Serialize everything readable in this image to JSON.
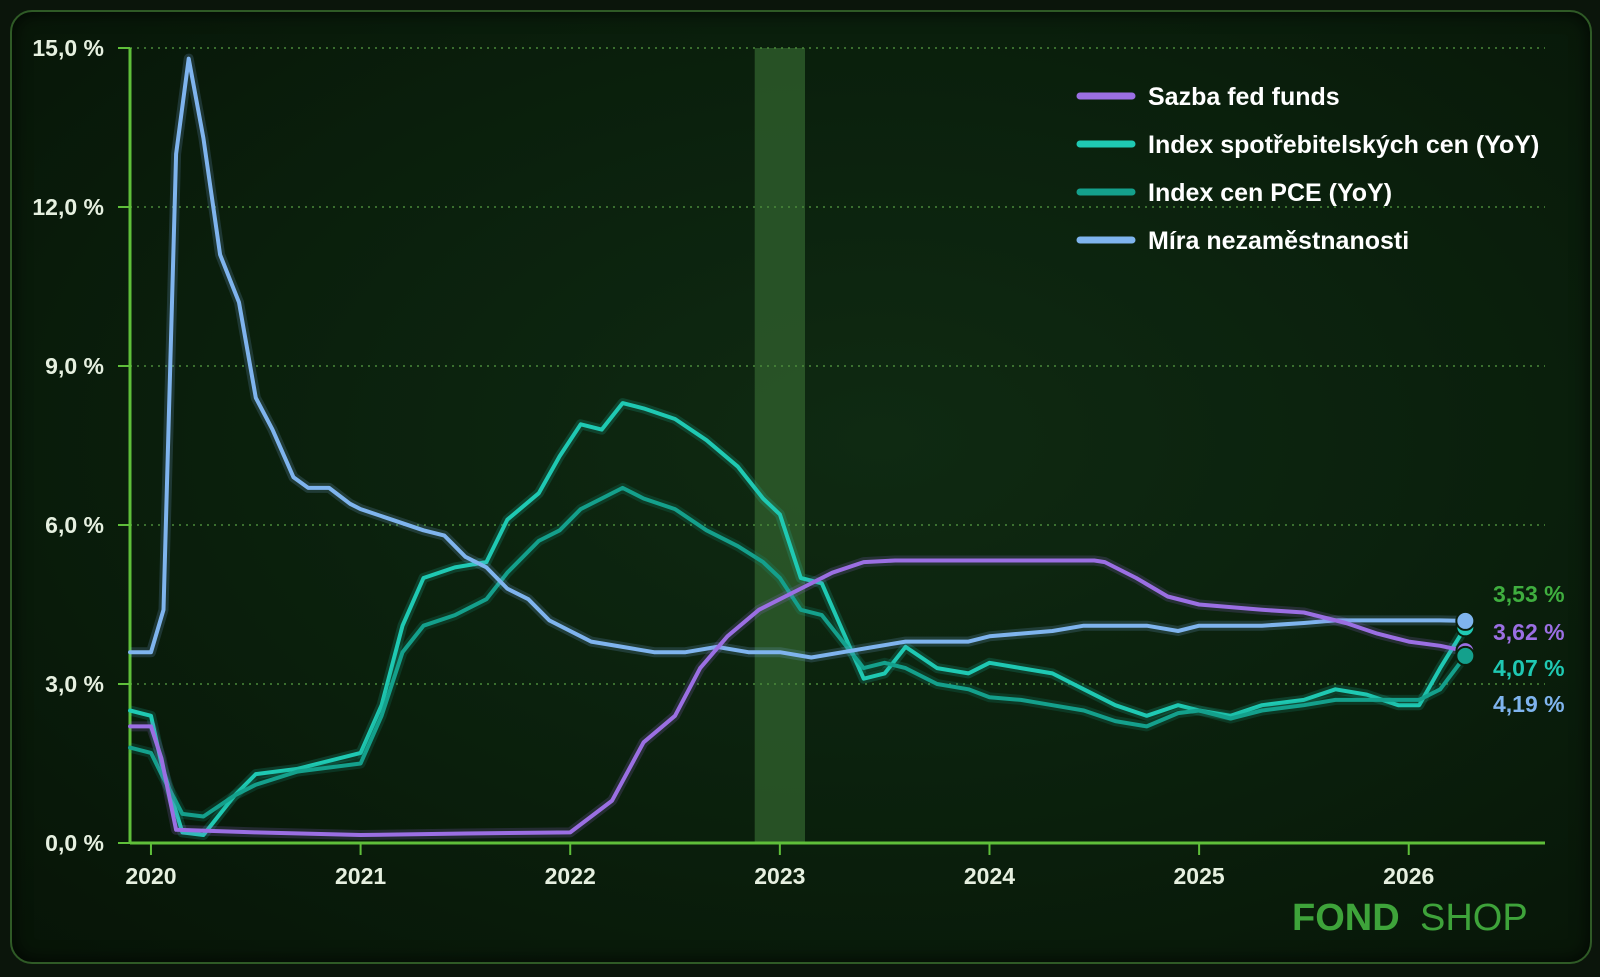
{
  "chart_data": {
    "type": "line",
    "x_ticks": [
      "2020",
      "2021",
      "2022",
      "2023",
      "2024",
      "2025",
      "2026"
    ],
    "y_ticks": [
      "0,0 %",
      "3,0 %",
      "6,0 %",
      "9,0 %",
      "12,0 %",
      "15,0 %"
    ],
    "ylim": [
      0,
      15
    ],
    "xlim": [
      2019.9,
      2026.65
    ],
    "grid": "horizontal dotted",
    "legend_position": "top-right",
    "highlight_band": [
      2022.88,
      2023.12
    ],
    "series": [
      {
        "name": "Sazba fed funds",
        "color": "#9b6fe3",
        "end_label": "3,62 %",
        "points": [
          [
            2019.9,
            2.2
          ],
          [
            2020.0,
            2.2
          ],
          [
            2020.05,
            1.6
          ],
          [
            2020.12,
            0.25
          ],
          [
            2020.5,
            0.2
          ],
          [
            2021.0,
            0.15
          ],
          [
            2021.5,
            0.18
          ],
          [
            2022.0,
            0.2
          ],
          [
            2022.1,
            0.5
          ],
          [
            2022.2,
            0.8
          ],
          [
            2022.35,
            1.9
          ],
          [
            2022.5,
            2.4
          ],
          [
            2022.62,
            3.3
          ],
          [
            2022.75,
            3.9
          ],
          [
            2022.9,
            4.4
          ],
          [
            2023.0,
            4.6
          ],
          [
            2023.1,
            4.8
          ],
          [
            2023.25,
            5.1
          ],
          [
            2023.4,
            5.3
          ],
          [
            2023.55,
            5.33
          ],
          [
            2023.7,
            5.33
          ],
          [
            2024.0,
            5.33
          ],
          [
            2024.5,
            5.33
          ],
          [
            2024.55,
            5.3
          ],
          [
            2024.7,
            5.0
          ],
          [
            2024.85,
            4.65
          ],
          [
            2025.0,
            4.5
          ],
          [
            2025.3,
            4.4
          ],
          [
            2025.5,
            4.35
          ],
          [
            2025.7,
            4.15
          ],
          [
            2025.85,
            3.95
          ],
          [
            2026.0,
            3.8
          ],
          [
            2026.15,
            3.72
          ],
          [
            2026.27,
            3.62
          ]
        ]
      },
      {
        "name": "Index spotřebitelských cen (YoY)",
        "color": "#1fc9b3",
        "end_label": "4,07 %",
        "points": [
          [
            2019.9,
            2.5
          ],
          [
            2020.0,
            2.4
          ],
          [
            2020.05,
            1.5
          ],
          [
            2020.15,
            0.2
          ],
          [
            2020.25,
            0.15
          ],
          [
            2020.4,
            0.9
          ],
          [
            2020.5,
            1.3
          ],
          [
            2020.7,
            1.4
          ],
          [
            2021.0,
            1.7
          ],
          [
            2021.1,
            2.6
          ],
          [
            2021.2,
            4.1
          ],
          [
            2021.3,
            5.0
          ],
          [
            2021.45,
            5.2
          ],
          [
            2021.6,
            5.3
          ],
          [
            2021.7,
            6.1
          ],
          [
            2021.85,
            6.6
          ],
          [
            2021.95,
            7.3
          ],
          [
            2022.05,
            7.9
          ],
          [
            2022.15,
            7.8
          ],
          [
            2022.25,
            8.3
          ],
          [
            2022.35,
            8.2
          ],
          [
            2022.5,
            8.0
          ],
          [
            2022.65,
            7.6
          ],
          [
            2022.8,
            7.1
          ],
          [
            2022.92,
            6.5
          ],
          [
            2023.0,
            6.2
          ],
          [
            2023.1,
            5.0
          ],
          [
            2023.2,
            4.9
          ],
          [
            2023.3,
            4.0
          ],
          [
            2023.4,
            3.1
          ],
          [
            2023.5,
            3.2
          ],
          [
            2023.6,
            3.7
          ],
          [
            2023.75,
            3.3
          ],
          [
            2023.9,
            3.2
          ],
          [
            2024.0,
            3.4
          ],
          [
            2024.15,
            3.3
          ],
          [
            2024.3,
            3.2
          ],
          [
            2024.45,
            2.9
          ],
          [
            2024.6,
            2.6
          ],
          [
            2024.75,
            2.4
          ],
          [
            2024.9,
            2.6
          ],
          [
            2025.0,
            2.5
          ],
          [
            2025.15,
            2.4
          ],
          [
            2025.3,
            2.6
          ],
          [
            2025.5,
            2.7
          ],
          [
            2025.65,
            2.9
          ],
          [
            2025.8,
            2.8
          ],
          [
            2025.95,
            2.6
          ],
          [
            2026.05,
            2.6
          ],
          [
            2026.15,
            3.3
          ],
          [
            2026.27,
            4.07
          ]
        ]
      },
      {
        "name": "Index cen PCE (YoY)",
        "color": "#14a08c",
        "end_label": "3,53 %",
        "end_label_color": "#3fae3f",
        "points": [
          [
            2019.9,
            1.8
          ],
          [
            2020.0,
            1.7
          ],
          [
            2020.05,
            1.3
          ],
          [
            2020.15,
            0.55
          ],
          [
            2020.25,
            0.5
          ],
          [
            2020.4,
            0.9
          ],
          [
            2020.5,
            1.1
          ],
          [
            2020.7,
            1.35
          ],
          [
            2021.0,
            1.5
          ],
          [
            2021.1,
            2.4
          ],
          [
            2021.2,
            3.6
          ],
          [
            2021.3,
            4.1
          ],
          [
            2021.45,
            4.3
          ],
          [
            2021.6,
            4.6
          ],
          [
            2021.7,
            5.1
          ],
          [
            2021.85,
            5.7
          ],
          [
            2021.95,
            5.9
          ],
          [
            2022.05,
            6.3
          ],
          [
            2022.15,
            6.5
          ],
          [
            2022.25,
            6.7
          ],
          [
            2022.35,
            6.5
          ],
          [
            2022.5,
            6.3
          ],
          [
            2022.65,
            5.9
          ],
          [
            2022.8,
            5.6
          ],
          [
            2022.92,
            5.3
          ],
          [
            2023.0,
            5.0
          ],
          [
            2023.1,
            4.4
          ],
          [
            2023.2,
            4.3
          ],
          [
            2023.3,
            3.8
          ],
          [
            2023.4,
            3.3
          ],
          [
            2023.5,
            3.4
          ],
          [
            2023.6,
            3.3
          ],
          [
            2023.75,
            3.0
          ],
          [
            2023.9,
            2.9
          ],
          [
            2024.0,
            2.75
          ],
          [
            2024.15,
            2.7
          ],
          [
            2024.3,
            2.6
          ],
          [
            2024.45,
            2.5
          ],
          [
            2024.6,
            2.3
          ],
          [
            2024.75,
            2.2
          ],
          [
            2024.9,
            2.45
          ],
          [
            2025.0,
            2.5
          ],
          [
            2025.15,
            2.35
          ],
          [
            2025.3,
            2.5
          ],
          [
            2025.5,
            2.6
          ],
          [
            2025.65,
            2.7
          ],
          [
            2025.8,
            2.7
          ],
          [
            2025.95,
            2.7
          ],
          [
            2026.05,
            2.7
          ],
          [
            2026.15,
            2.9
          ],
          [
            2026.27,
            3.53
          ]
        ]
      },
      {
        "name": "Míra nezaměstnanosti",
        "color": "#7fb4ee",
        "end_label": "4,19 %",
        "points": [
          [
            2019.9,
            3.6
          ],
          [
            2020.0,
            3.6
          ],
          [
            2020.06,
            4.4
          ],
          [
            2020.12,
            13.0
          ],
          [
            2020.18,
            14.8
          ],
          [
            2020.25,
            13.3
          ],
          [
            2020.33,
            11.1
          ],
          [
            2020.42,
            10.2
          ],
          [
            2020.5,
            8.4
          ],
          [
            2020.58,
            7.8
          ],
          [
            2020.68,
            6.9
          ],
          [
            2020.75,
            6.7
          ],
          [
            2020.85,
            6.7
          ],
          [
            2020.95,
            6.4
          ],
          [
            2021.0,
            6.3
          ],
          [
            2021.15,
            6.1
          ],
          [
            2021.3,
            5.9
          ],
          [
            2021.4,
            5.8
          ],
          [
            2021.5,
            5.4
          ],
          [
            2021.6,
            5.2
          ],
          [
            2021.7,
            4.8
          ],
          [
            2021.8,
            4.6
          ],
          [
            2021.9,
            4.2
          ],
          [
            2022.0,
            4.0
          ],
          [
            2022.1,
            3.8
          ],
          [
            2022.25,
            3.7
          ],
          [
            2022.4,
            3.6
          ],
          [
            2022.55,
            3.6
          ],
          [
            2022.7,
            3.7
          ],
          [
            2022.85,
            3.6
          ],
          [
            2023.0,
            3.6
          ],
          [
            2023.15,
            3.5
          ],
          [
            2023.3,
            3.6
          ],
          [
            2023.45,
            3.7
          ],
          [
            2023.6,
            3.8
          ],
          [
            2023.75,
            3.8
          ],
          [
            2023.9,
            3.8
          ],
          [
            2024.0,
            3.9
          ],
          [
            2024.15,
            3.95
          ],
          [
            2024.3,
            4.0
          ],
          [
            2024.45,
            4.1
          ],
          [
            2024.6,
            4.1
          ],
          [
            2024.75,
            4.1
          ],
          [
            2024.9,
            4.0
          ],
          [
            2025.0,
            4.1
          ],
          [
            2025.15,
            4.1
          ],
          [
            2025.3,
            4.1
          ],
          [
            2025.5,
            4.15
          ],
          [
            2025.65,
            4.2
          ],
          [
            2025.8,
            4.2
          ],
          [
            2025.95,
            4.2
          ],
          [
            2026.05,
            4.2
          ],
          [
            2026.15,
            4.2
          ],
          [
            2026.27,
            4.19
          ]
        ]
      }
    ]
  },
  "brand": {
    "bold": "FOND",
    "thin": "SHOP"
  }
}
